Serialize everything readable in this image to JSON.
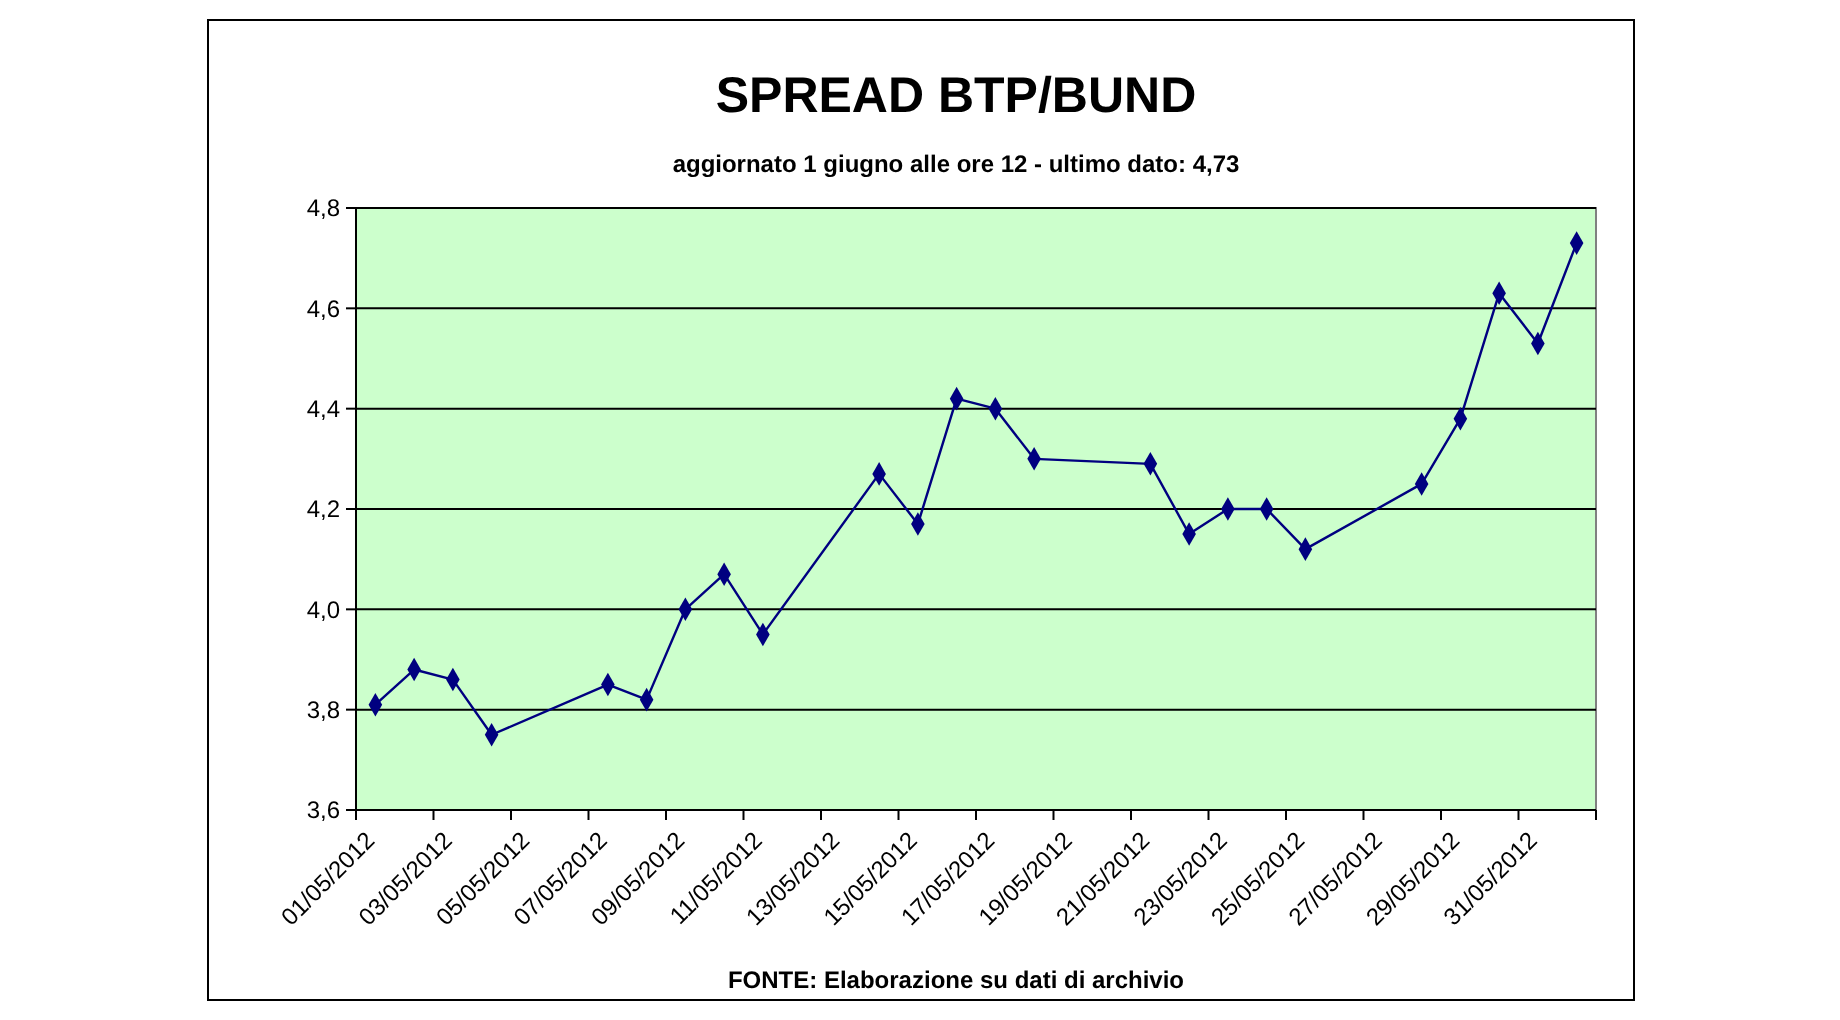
{
  "chart_data": {
    "type": "line",
    "title": "SPREAD BTP/BUND",
    "subtitle": "aggiornato  1 giugno alle ore 12 - ultimo dato: 4,73",
    "annotations": [
      "FONTE: Elaborazione su dati di archivio"
    ],
    "x": [
      "2012-05-01T12:00",
      "2012-05-02T12:00",
      "2012-05-03T12:00",
      "2012-05-04T12:00",
      "2012-05-07T12:00",
      "2012-05-08T12:00",
      "2012-05-09T12:00",
      "2012-05-10T12:00",
      "2012-05-11T12:00",
      "2012-05-14T12:00",
      "2012-05-15T12:00",
      "2012-05-16T12:00",
      "2012-05-17T12:00",
      "2012-05-18T12:00",
      "2012-05-21T12:00",
      "2012-05-22T12:00",
      "2012-05-23T12:00",
      "2012-05-24T12:00",
      "2012-05-25T12:00",
      "2012-05-28T12:00",
      "2012-05-29T12:00",
      "2012-05-30T12:00",
      "2012-05-31T12:00",
      "2012-06-01T12:00"
    ],
    "series": [
      {
        "color": "#000080",
        "values": [
          3.81,
          3.88,
          3.86,
          3.75,
          3.85,
          3.82,
          4.0,
          4.07,
          3.95,
          4.27,
          4.17,
          4.42,
          4.4,
          4.3,
          4.29,
          4.15,
          4.2,
          4.2,
          4.12,
          4.25,
          4.38,
          4.63,
          4.53,
          4.73
        ]
      }
    ],
    "xlim": [
      "2012-05-01",
      "2012-06-02"
    ],
    "xticks": [
      {
        "value": "2012-05-01",
        "label": "01/05/2012"
      },
      {
        "value": "2012-05-03",
        "label": "03/05/2012"
      },
      {
        "value": "2012-05-05",
        "label": "05/05/2012"
      },
      {
        "value": "2012-05-07",
        "label": "07/05/2012"
      },
      {
        "value": "2012-05-09",
        "label": "09/05/2012"
      },
      {
        "value": "2012-05-11",
        "label": "11/05/2012"
      },
      {
        "value": "2012-05-13",
        "label": "13/05/2012"
      },
      {
        "value": "2012-05-15",
        "label": "15/05/2012"
      },
      {
        "value": "2012-05-17",
        "label": "17/05/2012"
      },
      {
        "value": "2012-05-19",
        "label": "19/05/2012"
      },
      {
        "value": "2012-05-21",
        "label": "21/05/2012"
      },
      {
        "value": "2012-05-23",
        "label": "23/05/2012"
      },
      {
        "value": "2012-05-25",
        "label": "25/05/2012"
      },
      {
        "value": "2012-05-27",
        "label": "27/05/2012"
      },
      {
        "value": "2012-05-29",
        "label": "29/05/2012"
      },
      {
        "value": "2012-05-31",
        "label": "31/05/2012"
      },
      {
        "value": "2012-06-02",
        "label": null
      }
    ],
    "ylim": [
      3.6,
      4.8
    ],
    "yticks": [
      {
        "value": 3.6,
        "label": "3,6"
      },
      {
        "value": 3.8,
        "label": "3,8"
      },
      {
        "value": 4.0,
        "label": "4,0"
      },
      {
        "value": 4.2,
        "label": "4,2"
      },
      {
        "value": 4.4,
        "label": "4,4"
      },
      {
        "value": 4.6,
        "label": "4,6"
      },
      {
        "value": 4.8,
        "label": "4,8"
      }
    ],
    "grid": "y",
    "marker": "diamond",
    "line_style": "solid"
  }
}
